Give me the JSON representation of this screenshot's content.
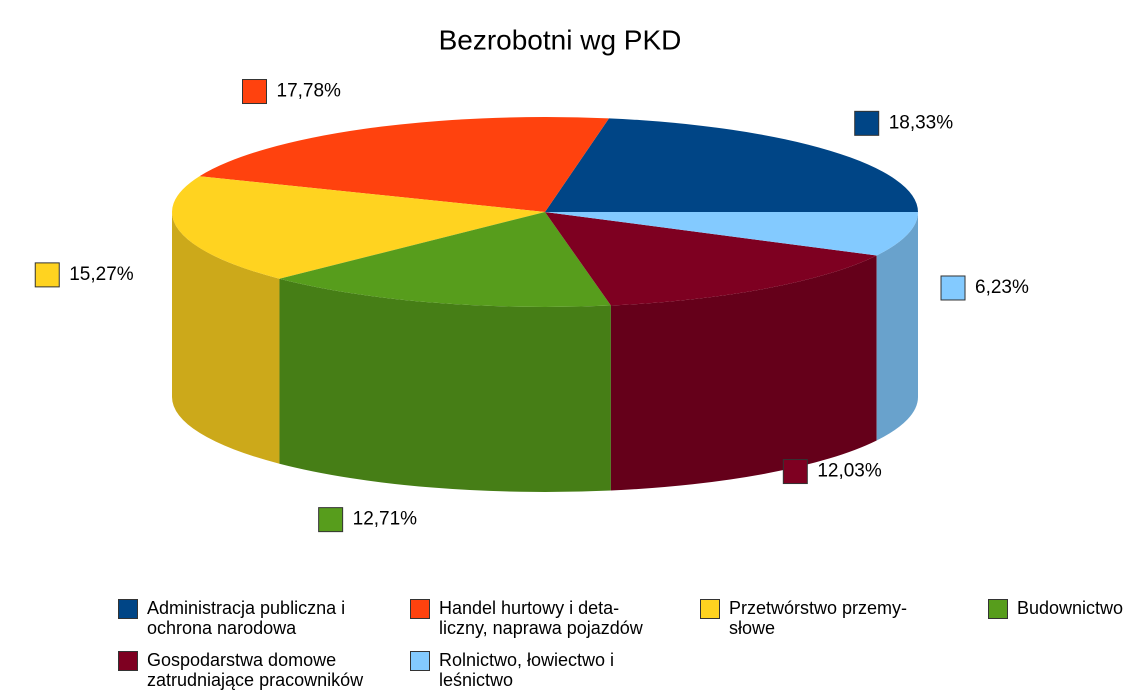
{
  "chart_data": {
    "type": "pie3d",
    "title": "Bezrobotni wg PKD",
    "categories": [
      "Administracja publiczna i\nochrona narodowa",
      "Handel hurtowy i deta-\nliczny, naprawa pojazdów",
      "Przetwórstwo przemy-\nsłowe",
      "Budownictwo",
      "Gospodarstwa domowe\nzatrudniające pracowników",
      "Rolnictwo, łowiectwo i\nleśnictwo"
    ],
    "values": [
      18.33,
      17.78,
      15.27,
      12.71,
      12.03,
      6.23
    ],
    "value_labels": [
      "18,33%",
      "17,78%",
      "15,27%",
      "12,71%",
      "12,03%",
      "6,23%"
    ],
    "colors": [
      "#004586",
      "#ff420e",
      "#ffd320",
      "#579d1c",
      "#7e0021",
      "#83caff"
    ],
    "legend": "bottom"
  }
}
